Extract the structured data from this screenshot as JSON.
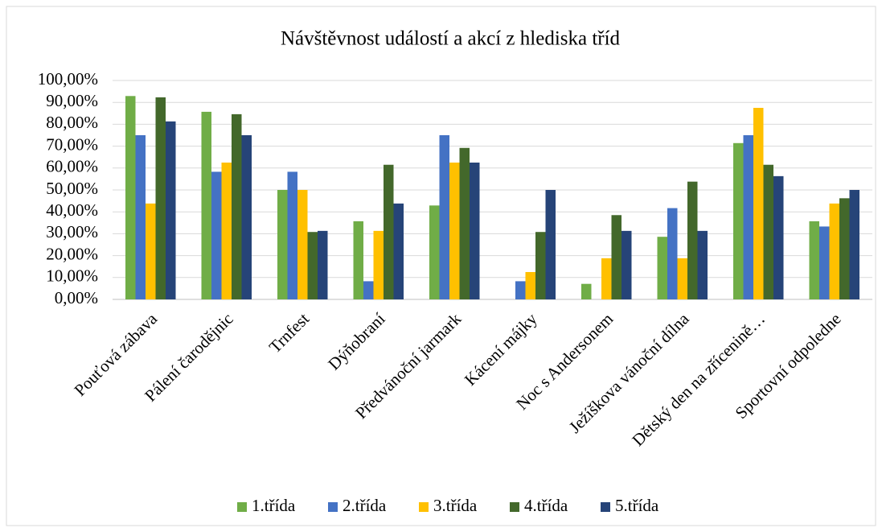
{
  "chart_data": {
    "type": "bar",
    "title": "Návštěvnost událostí a akcí z hlediska tříd",
    "categories": [
      "Pouťová zábava",
      "Pálení čarodějnic",
      "Trnfest",
      "Dýňobraní",
      "Předvánoční jarmark",
      "Kácení májky",
      "Noc s Andersonem",
      "Ježíškova vánoční dílna",
      "Dětský den na zřícenině…",
      "Sportovní odpoledne"
    ],
    "series": [
      {
        "name": "1.třída",
        "color": "#70ad47",
        "values": [
          92.9,
          85.7,
          50,
          35.7,
          42.9,
          0,
          7.1,
          28.6,
          71.4,
          35.7
        ]
      },
      {
        "name": "2.třída",
        "color": "#4472c4",
        "values": [
          75,
          58.3,
          58.3,
          8.3,
          75,
          8.3,
          0,
          41.7,
          75,
          33.3
        ]
      },
      {
        "name": "3.třída",
        "color": "#ffc000",
        "values": [
          43.8,
          62.5,
          50,
          31.3,
          62.5,
          12.5,
          18.8,
          18.8,
          87.5,
          43.8
        ]
      },
      {
        "name": "4.třída",
        "color": "#43682b",
        "values": [
          92.3,
          84.6,
          30.8,
          61.5,
          69.2,
          30.8,
          38.5,
          53.8,
          61.5,
          46.2
        ]
      },
      {
        "name": "5.třída",
        "color": "#264478",
        "values": [
          81.3,
          75,
          31.3,
          43.8,
          62.5,
          50,
          31.3,
          31.3,
          56.3,
          50
        ]
      }
    ],
    "ylim": [
      0,
      100
    ],
    "yticks": [
      {
        "value": 0,
        "label": "0,00%"
      },
      {
        "value": 10,
        "label": "10,00%"
      },
      {
        "value": 20,
        "label": "20,00%"
      },
      {
        "value": 30,
        "label": "30,00%"
      },
      {
        "value": 40,
        "label": "40,00%"
      },
      {
        "value": 50,
        "label": "50,00%"
      },
      {
        "value": 60,
        "label": "60,00%"
      },
      {
        "value": 70,
        "label": "70,00%"
      },
      {
        "value": 80,
        "label": "80,00%"
      },
      {
        "value": 90,
        "label": "90,00%"
      },
      {
        "value": 100,
        "label": "100,00%"
      }
    ],
    "grid": true,
    "legend": "bottom"
  }
}
